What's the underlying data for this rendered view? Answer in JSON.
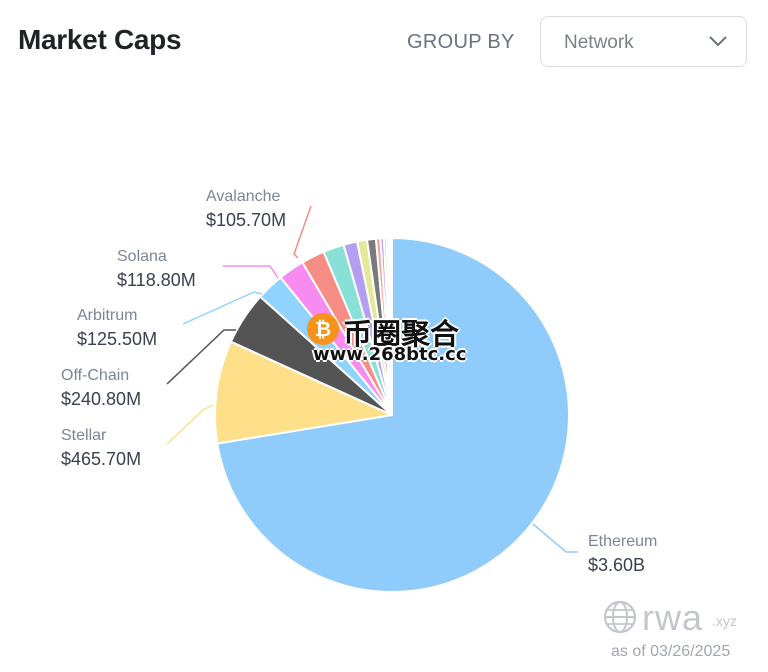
{
  "header": {
    "title": "Market Caps",
    "group_by_label": "GROUP BY",
    "group_by_value": "Network"
  },
  "chart_data": {
    "type": "pie",
    "title": "Market Caps",
    "unit": "USD",
    "slices": [
      {
        "name": "Ethereum",
        "value_label": "$3.60B",
        "value": 3600000000,
        "color": "#8fccfb",
        "labeled": true
      },
      {
        "name": "Stellar",
        "value_label": "$465.70M",
        "value": 465700000,
        "color": "#fee08b",
        "labeled": true
      },
      {
        "name": "Off-Chain",
        "value_label": "$240.80M",
        "value": 240800000,
        "color": "#545454",
        "labeled": true
      },
      {
        "name": "Arbitrum",
        "value_label": "$125.50M",
        "value": 125500000,
        "color": "#8fd3fe",
        "labeled": true
      },
      {
        "name": "Solana",
        "value_label": "$118.80M",
        "value": 118800000,
        "color": "#f88bf0",
        "labeled": true
      },
      {
        "name": "Avalanche",
        "value_label": "$105.70M",
        "value": 105700000,
        "color": "#f58d85",
        "labeled": true
      },
      {
        "name": "",
        "value": 95000000,
        "color": "#89e0d6",
        "labeled": false
      },
      {
        "name": "",
        "value": 62000000,
        "color": "#b39ef2",
        "labeled": false
      },
      {
        "name": "",
        "value": 45000000,
        "color": "#e3e89a",
        "labeled": false
      },
      {
        "name": "",
        "value": 40000000,
        "color": "#7a7a7a",
        "labeled": false
      },
      {
        "name": "",
        "value": 20000000,
        "color": "#f3a0a0",
        "labeled": false
      },
      {
        "name": "",
        "value": 16000000,
        "color": "#bfa5e3",
        "labeled": false
      },
      {
        "name": "",
        "value": 12000000,
        "color": "#a6dc8c",
        "labeled": false
      },
      {
        "name": "",
        "value": 10000000,
        "color": "#9ab0d8",
        "labeled": false
      },
      {
        "name": "",
        "value": 8000000,
        "color": "#f5c7a0",
        "labeled": false
      },
      {
        "name": "",
        "value": 6000000,
        "color": "#9cd4e8",
        "labeled": false
      }
    ],
    "start": "12 o'clock",
    "direction": "clockwise"
  },
  "footer": {
    "brand": "rwa",
    "brand_tld": ".xyz",
    "as_of": "as of 03/26/2025"
  },
  "overlay": {
    "coin_symbol": "₿",
    "cn_text": "币圈聚合",
    "url": "www.268btc.cc"
  }
}
